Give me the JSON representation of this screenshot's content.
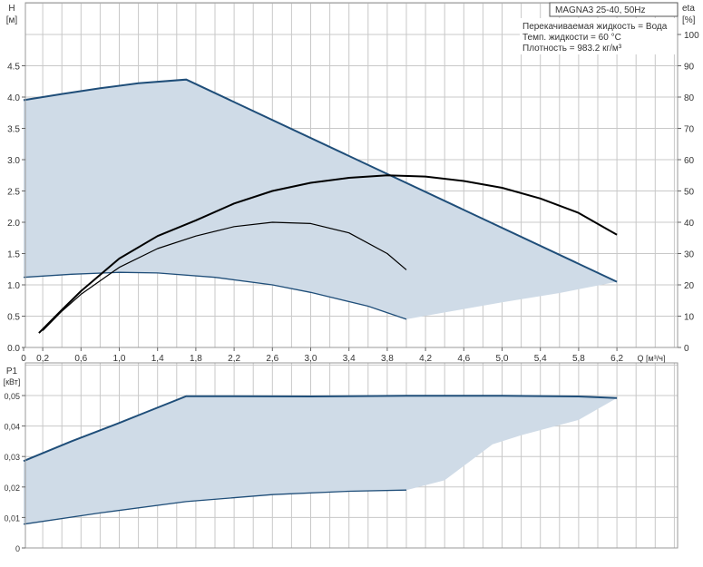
{
  "chart_data": [
    {
      "type": "area",
      "title": "MAGNA3 25-40, 50Hz",
      "annotations": [
        "Перекачиваемая жидкость = Вода",
        "Темп. жидкости = 60 °C",
        "Плотность = 983.2 кг/м³"
      ],
      "xlabel": "Q [м³/ч]",
      "ylabel_left": "H",
      "ylabel_left_unit": "[м]",
      "ylabel_right": "eta",
      "ylabel_right_unit": "[%]",
      "xlim": [
        0,
        6.8
      ],
      "ylim_left": [
        0,
        5.5
      ],
      "ylim_right": [
        0,
        110
      ],
      "x_ticks": [
        "0",
        "0,2",
        "0,6",
        "1,0",
        "1,4",
        "1,8",
        "2,2",
        "2,6",
        "3,0",
        "3,4",
        "3,8",
        "4,2",
        "4,6",
        "5,0",
        "5,4",
        "5,8",
        "6,2"
      ],
      "y_left_ticks": [
        "0.0",
        "0.5",
        "1.0",
        "1.5",
        "2.0",
        "2.5",
        "3.0",
        "3.5",
        "4.0",
        "4.5"
      ],
      "y_right_ticks": [
        "0",
        "10",
        "20",
        "30",
        "40",
        "50",
        "60",
        "70",
        "80",
        "90",
        "100"
      ],
      "grid": true,
      "band_color": "#cfdbe7",
      "line_color": "#1f4e79",
      "operating_range_H": {
        "upper": [
          [
            0,
            3.95
          ],
          [
            0.4,
            4.05
          ],
          [
            0.8,
            4.14
          ],
          [
            1.2,
            4.22
          ],
          [
            1.7,
            4.28
          ],
          [
            6.2,
            1.05
          ]
        ],
        "right": [
          [
            6.2,
            1.05
          ],
          [
            5.6,
            0.87
          ],
          [
            5.0,
            0.72
          ],
          [
            4.4,
            0.56
          ],
          [
            4.0,
            0.45
          ]
        ],
        "lower": [
          [
            0,
            1.12
          ],
          [
            0.5,
            1.17
          ],
          [
            1.0,
            1.2
          ],
          [
            1.4,
            1.19
          ],
          [
            2.0,
            1.12
          ],
          [
            2.6,
            1.0
          ],
          [
            3.0,
            0.88
          ],
          [
            3.6,
            0.66
          ],
          [
            4.0,
            0.45
          ]
        ]
      },
      "eta_curves": [
        {
          "x": [
            0.16,
            0.4,
            0.6,
            1.0,
            1.4,
            1.8,
            2.2,
            2.6,
            3.0,
            3.4,
            3.8,
            4.2,
            4.6,
            5.0,
            5.4,
            5.8,
            6.2
          ],
          "y": [
            4.6,
            12,
            18,
            28.4,
            35.6,
            40.6,
            46,
            50,
            52.6,
            54.2,
            55,
            54.6,
            53.2,
            51,
            47.6,
            43,
            36
          ]
        },
        {
          "x": [
            0.2,
            0.4,
            0.6,
            1.0,
            1.4,
            1.8,
            2.2,
            2.6,
            3.0,
            3.4,
            3.8,
            4.0
          ],
          "y": [
            5.4,
            11.6,
            17,
            25.6,
            31.6,
            35.6,
            38.6,
            40,
            39.6,
            36.6,
            30,
            24.8
          ]
        }
      ]
    },
    {
      "type": "area",
      "ylabel": "P1",
      "ylabel_unit": "[кВт]",
      "xlim": [
        0,
        6.8
      ],
      "ylim": [
        0,
        0.06
      ],
      "y_ticks": [
        "0",
        "0,01",
        "0,02",
        "0,03",
        "0,04",
        "0,05"
      ],
      "grid": true,
      "band_color": "#cfdbe7",
      "line_color": "#1f4e79",
      "operating_range_P1": {
        "upper": [
          [
            0,
            0.0285
          ],
          [
            0.5,
            0.035
          ],
          [
            1.0,
            0.041
          ],
          [
            1.3,
            0.0448
          ],
          [
            1.7,
            0.0498
          ],
          [
            3.0,
            0.0497
          ],
          [
            4.0,
            0.0499
          ],
          [
            5.0,
            0.0499
          ],
          [
            5.8,
            0.0497
          ],
          [
            6.2,
            0.0492
          ]
        ],
        "right": [
          [
            6.2,
            0.0492
          ],
          [
            5.8,
            0.042
          ],
          [
            5.2,
            0.037
          ],
          [
            4.9,
            0.034
          ],
          [
            4.4,
            0.0222
          ],
          [
            4.0,
            0.019
          ]
        ],
        "lower": [
          [
            0,
            0.0078
          ],
          [
            0.8,
            0.0115
          ],
          [
            1.7,
            0.0152
          ],
          [
            2.6,
            0.0175
          ],
          [
            3.4,
            0.0186
          ],
          [
            4.0,
            0.019
          ]
        ]
      }
    }
  ]
}
